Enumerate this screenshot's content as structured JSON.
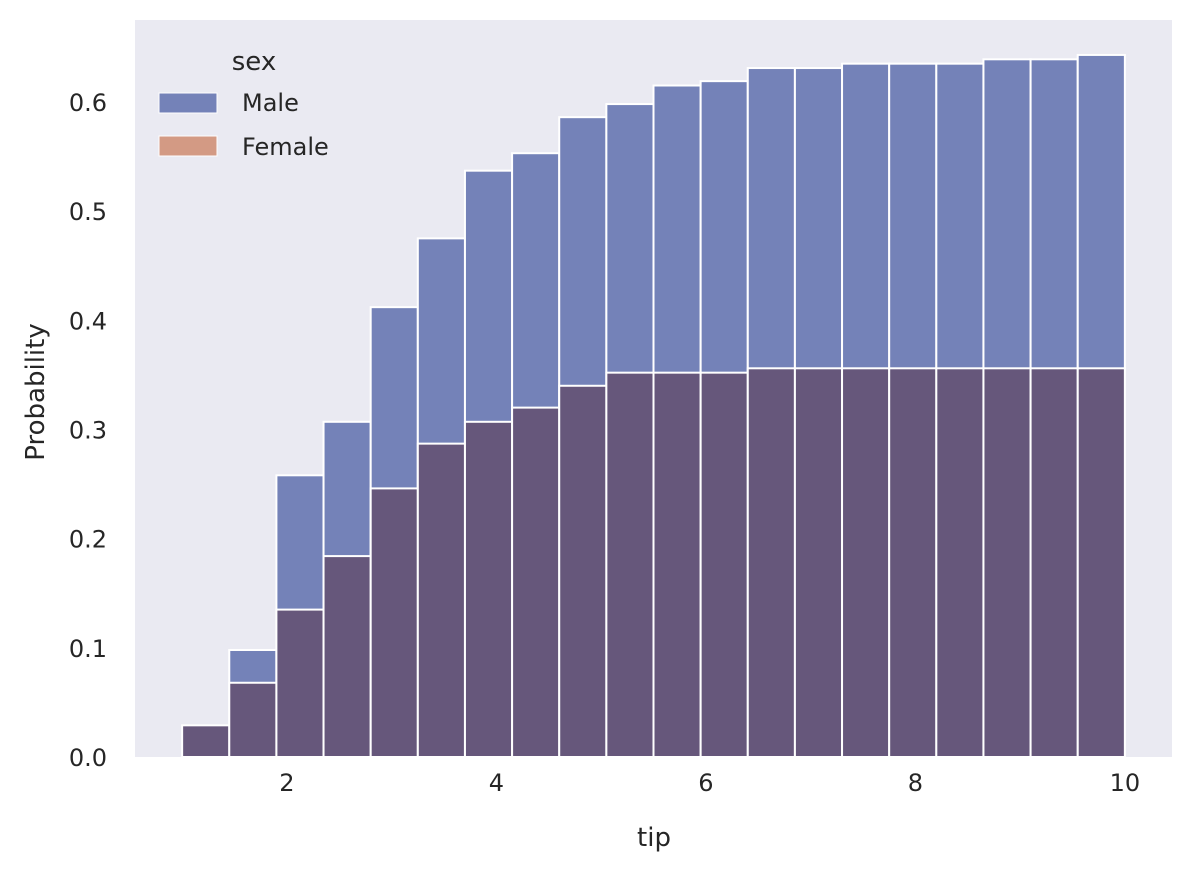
{
  "chart_data": {
    "type": "bar",
    "subtype": "cumulative-histogram-overlapping",
    "xlabel": "tip",
    "ylabel": "Probability",
    "xlim": [
      0.55,
      10.45
    ],
    "ylim": [
      0.0,
      0.675
    ],
    "x_ticks": [
      2,
      4,
      6,
      8,
      10
    ],
    "y_ticks": [
      0.0,
      0.1,
      0.2,
      0.3,
      0.4,
      0.5,
      0.6
    ],
    "grid": false,
    "background_color": "#eaeaf2",
    "legend": {
      "title": "sex",
      "position": "top-left",
      "entries": [
        {
          "label": "Male",
          "color": "#7482b8"
        },
        {
          "label": "Female",
          "color": "#d39a84"
        }
      ]
    },
    "bin_edges": [
      1.0,
      1.45,
      1.9,
      2.35,
      2.8,
      3.25,
      3.7,
      4.15,
      4.6,
      5.05,
      5.5,
      5.95,
      6.4,
      6.85,
      7.3,
      7.75,
      8.2,
      8.65,
      9.1,
      9.55,
      10.0
    ],
    "series": [
      {
        "name": "Male",
        "color": "#7482b8",
        "values": [
          0.0,
          0.098,
          0.258,
          0.307,
          0.412,
          0.475,
          0.537,
          0.553,
          0.586,
          0.598,
          0.615,
          0.619,
          0.631,
          0.631,
          0.635,
          0.635,
          0.635,
          0.639,
          0.639,
          0.643
        ]
      },
      {
        "name": "Female",
        "color": "#d39a84",
        "overlap_color": "#66577b",
        "values": [
          0.029,
          0.068,
          0.135,
          0.184,
          0.246,
          0.287,
          0.307,
          0.32,
          0.34,
          0.352,
          0.352,
          0.352,
          0.356,
          0.356,
          0.356,
          0.356,
          0.356,
          0.356,
          0.356,
          0.356
        ]
      }
    ]
  }
}
